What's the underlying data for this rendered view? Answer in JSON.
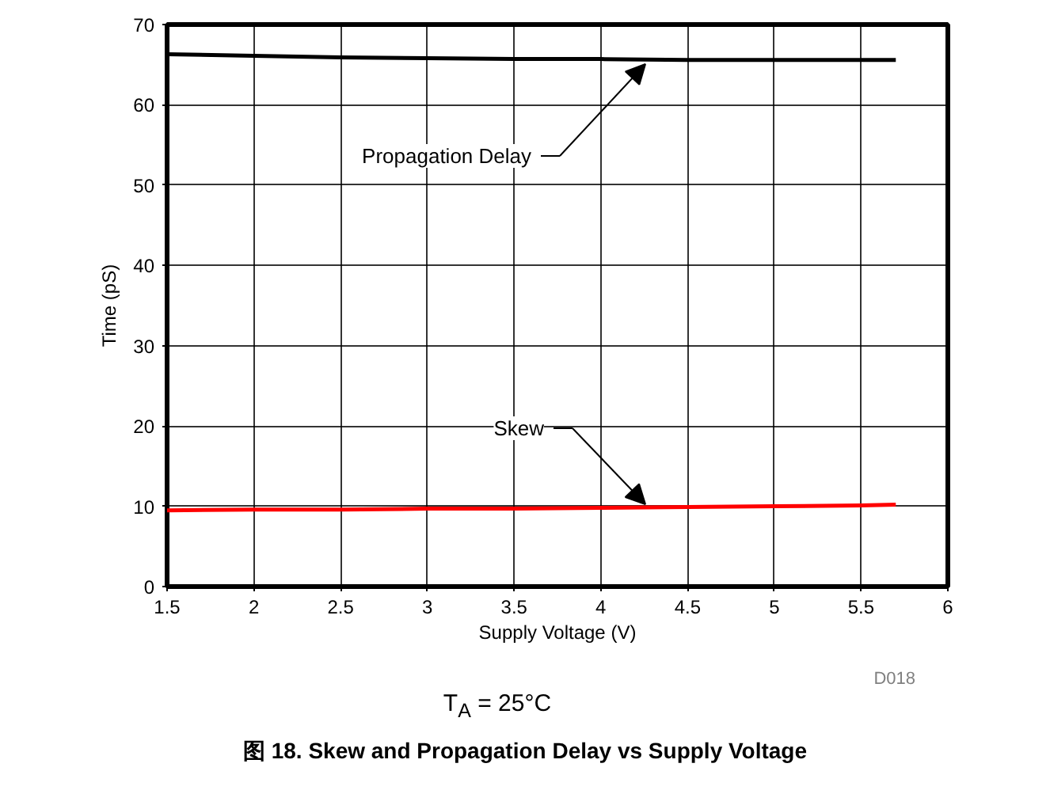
{
  "chart_data": {
    "type": "line",
    "title": "图 18. Skew and Propagation Delay vs Supply Voltage",
    "xlabel": "Supply Voltage (V)",
    "ylabel": "Time (pS)",
    "x": [
      1.5,
      2,
      2.5,
      3,
      3.5,
      4,
      4.5,
      5,
      5.5,
      5.7
    ],
    "series": [
      {
        "color": "#000000",
        "values": [
          66.3,
          66.1,
          65.9,
          65.8,
          65.7,
          65.7,
          65.6,
          65.6,
          65.6,
          65.6
        ]
      },
      {
        "color": "#ff0000",
        "values": [
          9.5,
          9.6,
          9.6,
          9.7,
          9.7,
          9.8,
          9.9,
          10,
          10.1,
          10.2
        ]
      }
    ],
    "xlim": [
      1.5,
      6
    ],
    "xticks": [
      1.5,
      2,
      2.5,
      3,
      3.5,
      4,
      4.5,
      5,
      5.5,
      6
    ],
    "ylim": [
      0,
      70
    ],
    "yticks": [
      0,
      10,
      20,
      30,
      40,
      50,
      60,
      70
    ],
    "grid": true,
    "line_style": "solid",
    "marker": "none",
    "annotations": [
      "Propagation Delay",
      "Skew",
      "D018",
      "T$_{A}$ = 25°C"
    ]
  }
}
